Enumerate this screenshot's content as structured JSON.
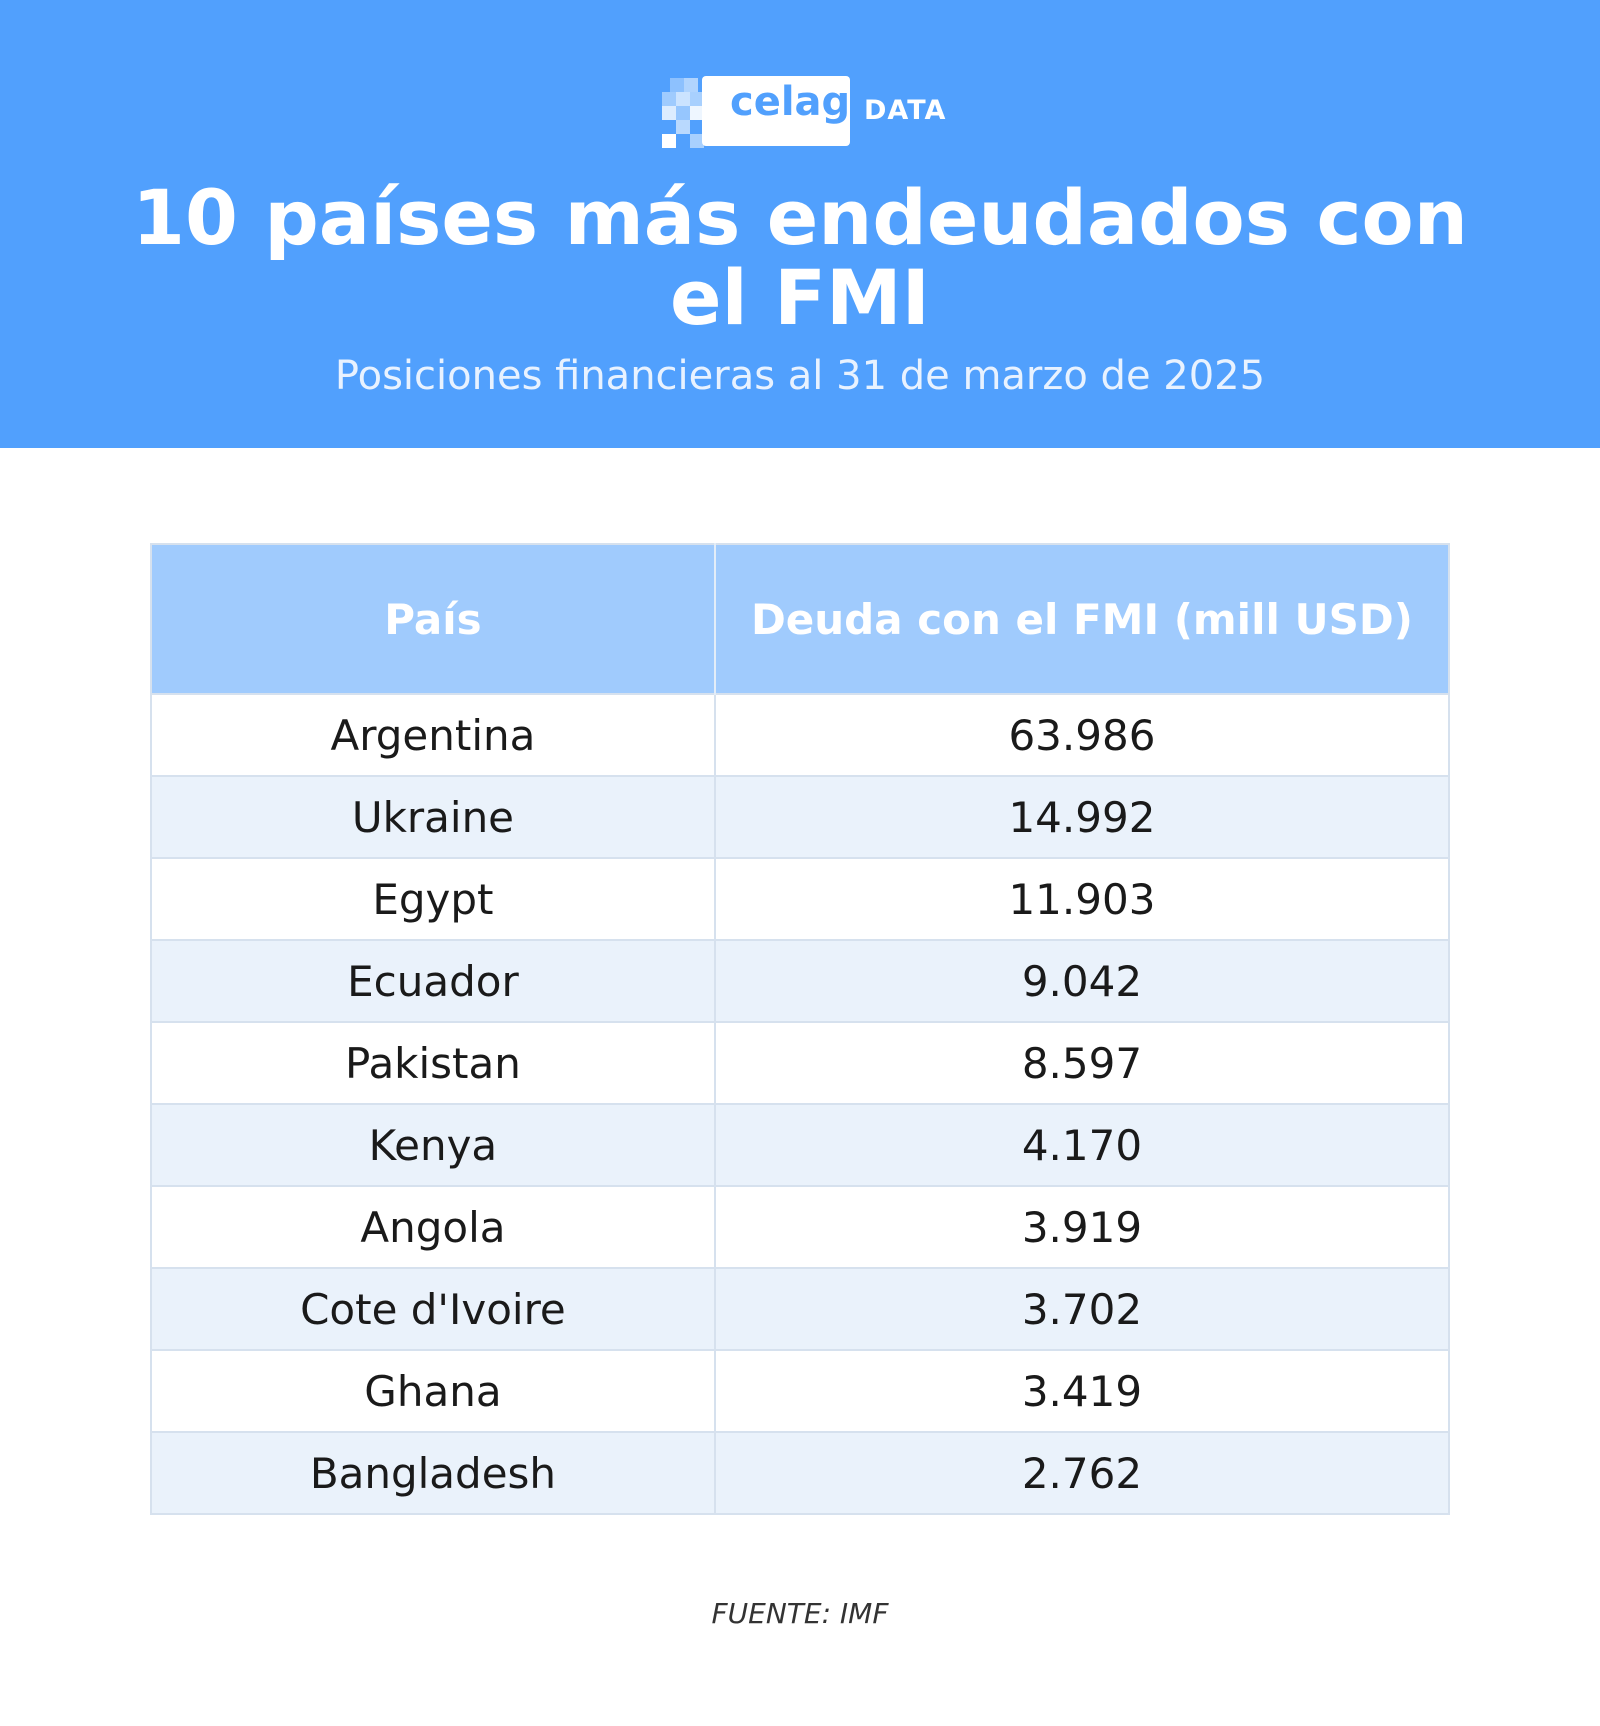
{
  "logo": {
    "word": "celag",
    "tag": "DATA",
    "icon": "pixel-blocks-icon",
    "color": "#51a0fd"
  },
  "header": {
    "title": "10 países más endeudados con el FMI",
    "subtitle": "Posiciones financieras al 31 de marzo de 2025",
    "background_color": "#51a0fd"
  },
  "chart_data": {
    "type": "table",
    "columns": [
      "País",
      "Deuda con el FMI (mill USD)"
    ],
    "rows": [
      {
        "country": "Argentina",
        "debt": "63.986"
      },
      {
        "country": "Ukraine",
        "debt": "14.992"
      },
      {
        "country": "Egypt",
        "debt": "11.903"
      },
      {
        "country": "Ecuador",
        "debt": "9.042"
      },
      {
        "country": "Pakistan",
        "debt": "8.597"
      },
      {
        "country": "Kenya",
        "debt": "4.170"
      },
      {
        "country": "Angola",
        "debt": "3.919"
      },
      {
        "country": "Cote d'Ivoire",
        "debt": "3.702"
      },
      {
        "country": "Ghana",
        "debt": "3.419"
      },
      {
        "country": "Bangladesh",
        "debt": "2.762"
      }
    ],
    "header_color": "#a0cbfd",
    "stripe_color": "#eaf2fb"
  },
  "footer": {
    "source": "FUENTE: IMF"
  }
}
